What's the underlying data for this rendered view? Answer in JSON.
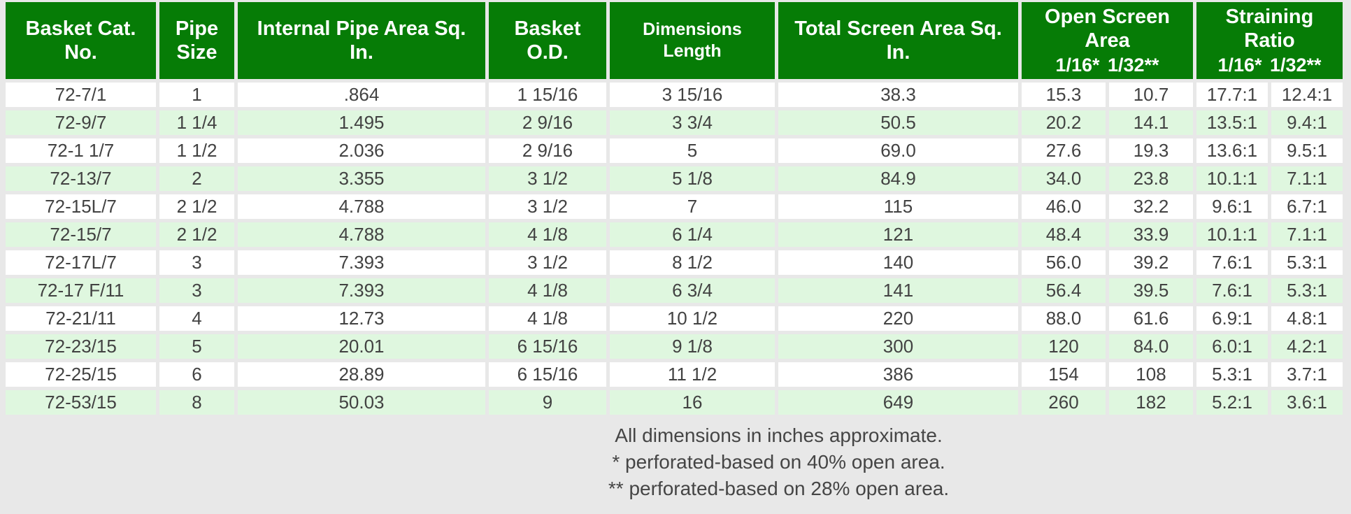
{
  "colors": {
    "header_green": "#067c06",
    "row_stripe_green": "#dff7df",
    "page_background": "#e8e8e8",
    "body_text": "#424242",
    "header_text": "#ffffff"
  },
  "table": {
    "headers": [
      {
        "line1": "Basket Cat.",
        "line2": "No."
      },
      {
        "line1": "Pipe",
        "line2": "Size"
      },
      {
        "line1": "Internal Pipe Area Sq.",
        "line2": "In."
      },
      {
        "line1": "Basket",
        "line2": "O.D."
      },
      {
        "line1": "Dimensions",
        "line2": "Length"
      },
      {
        "line1": "Total Screen Area Sq.",
        "line2": "In."
      },
      {
        "line1": "Open Screen",
        "line2": "Area",
        "line3": "1/16* 1/32**"
      },
      {
        "line1": "Straining",
        "line2": "Ratio",
        "line3": "1/16* 1/32**"
      }
    ],
    "rows": [
      {
        "cells": [
          "72-7/1",
          "1",
          ".864",
          "1 15/16",
          "3 15/16",
          "38.3",
          "15.3",
          "10.7",
          "17.7:1",
          "12.4:1"
        ]
      },
      {
        "cells": [
          "72-9/7",
          "1 1/4",
          "1.495",
          "2 9/16",
          "3 3/4",
          "50.5",
          "20.2",
          "14.1",
          "13.5:1",
          "9.4:1"
        ]
      },
      {
        "cells": [
          "72-1 1/7",
          "1 1/2",
          "2.036",
          "2 9/16",
          "5",
          "69.0",
          "27.6",
          "19.3",
          "13.6:1",
          "9.5:1"
        ]
      },
      {
        "cells": [
          "72-13/7",
          "2",
          "3.355",
          "3 1/2",
          "5 1/8",
          "84.9",
          "34.0",
          "23.8",
          "10.1:1",
          "7.1:1"
        ]
      },
      {
        "cells": [
          "72-15L/7",
          "2 1/2",
          "4.788",
          "3 1/2",
          "7",
          "115",
          "46.0",
          "32.2",
          "9.6:1",
          "6.7:1"
        ]
      },
      {
        "cells": [
          "72-15/7",
          "2 1/2",
          "4.788",
          "4 1/8",
          "6 1/4",
          "121",
          "48.4",
          "33.9",
          "10.1:1",
          "7.1:1"
        ]
      },
      {
        "cells": [
          "72-17L/7",
          "3",
          "7.393",
          "3 1/2",
          "8 1/2",
          "140",
          "56.0",
          "39.2",
          "7.6:1",
          "5.3:1"
        ]
      },
      {
        "cells": [
          "72-17 F/11",
          "3",
          "7.393",
          "4 1/8",
          "6 3/4",
          "141",
          "56.4",
          "39.5",
          "7.6:1",
          "5.3:1"
        ]
      },
      {
        "cells": [
          "72-21/11",
          "4",
          "12.73",
          "4 1/8",
          "10 1/2",
          "220",
          "88.0",
          "61.6",
          "6.9:1",
          "4.8:1"
        ]
      },
      {
        "cells": [
          "72-23/15",
          "5",
          "20.01",
          "6 15/16",
          "9 1/8",
          "300",
          "120",
          "84.0",
          "6.0:1",
          "4.2:1"
        ]
      },
      {
        "cells": [
          "72-25/15",
          "6",
          "28.89",
          "6 15/16",
          "11 1/2",
          "386",
          "154",
          "108",
          "5.3:1",
          "3.7:1"
        ]
      },
      {
        "cells": [
          "72-53/15",
          "8",
          "50.03",
          "9",
          "16",
          "649",
          "260",
          "182",
          "5.2:1",
          "3.6:1"
        ]
      }
    ]
  },
  "footnotes": [
    "All dimensions in inches approximate.",
    "* perforated-based on 40% open area.",
    "** perforated-based on 28% open area."
  ]
}
